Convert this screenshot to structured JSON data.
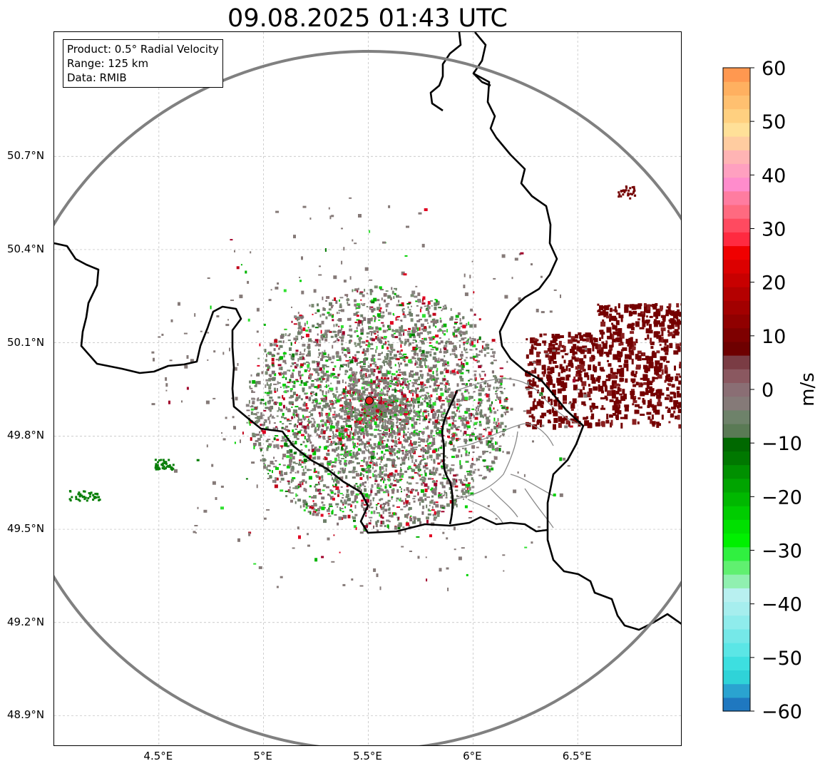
{
  "title": "09.08.2025 01:43 UTC",
  "info": {
    "product": "Product: 0.5° Radial Velocity",
    "range": "Range: 125 km",
    "data": "Data: RMIB"
  },
  "map": {
    "lon_range": [
      4.0,
      7.0
    ],
    "lat_range": [
      48.8,
      51.1
    ],
    "lon_ticks": [
      4.5,
      5.0,
      5.5,
      6.0,
      6.5
    ],
    "lon_tick_labels": [
      "4.5°E",
      "5°E",
      "5.5°E",
      "6°E",
      "6.5°E"
    ],
    "lat_ticks": [
      50.7,
      50.4,
      50.1,
      49.8,
      49.5,
      49.2,
      48.9
    ],
    "lat_tick_labels": [
      "50.7°N",
      "50.4°N",
      "50.1°N",
      "49.8°N",
      "49.5°N",
      "49.2°N",
      "48.9°N"
    ],
    "grid": true,
    "radar_site": {
      "lon": 5.505,
      "lat": 49.914
    },
    "range_ring_km": 125,
    "colors": {
      "border": "#000000",
      "admin": "#8a8a8a",
      "ring": "#808080",
      "grid": "#bbbbbb",
      "site": "#e0201c"
    }
  },
  "colorbar": {
    "label": "m/s",
    "min": -60,
    "max": 60,
    "ticks": [
      60,
      50,
      40,
      30,
      20,
      10,
      0,
      -10,
      -20,
      -30,
      -40,
      -50,
      -60
    ],
    "tick_labels": [
      "60",
      "50",
      "40",
      "30",
      "20",
      "10",
      "0",
      "−10",
      "−20",
      "−30",
      "−40",
      "−50",
      "−60"
    ],
    "colors": [
      "#1f78c0",
      "#2aa3d0",
      "#2fd3d8",
      "#3ddfe0",
      "#5be6e6",
      "#75e8e8",
      "#8fecec",
      "#a6eeee",
      "#b8f0f0",
      "#90f0b0",
      "#60f070",
      "#30f040",
      "#00f000",
      "#00e000",
      "#00cc00",
      "#00b800",
      "#00a400",
      "#009000",
      "#007800",
      "#006800",
      "#5a7a55",
      "#6e826a",
      "#857a78",
      "#8a6e74",
      "#8a5860",
      "#7a3c44",
      "#6e0000",
      "#7e0000",
      "#900000",
      "#a20000",
      "#b40000",
      "#c80000",
      "#dc0000",
      "#f00000",
      "#ff2a40",
      "#ff4a60",
      "#ff6a80",
      "#ff7ca0",
      "#ff8ccc",
      "#ffa0c0",
      "#ffb4b4",
      "#ffcca0",
      "#ffe098",
      "#ffd080",
      "#ffc070",
      "#ffb060",
      "#ff9850"
    ]
  }
}
